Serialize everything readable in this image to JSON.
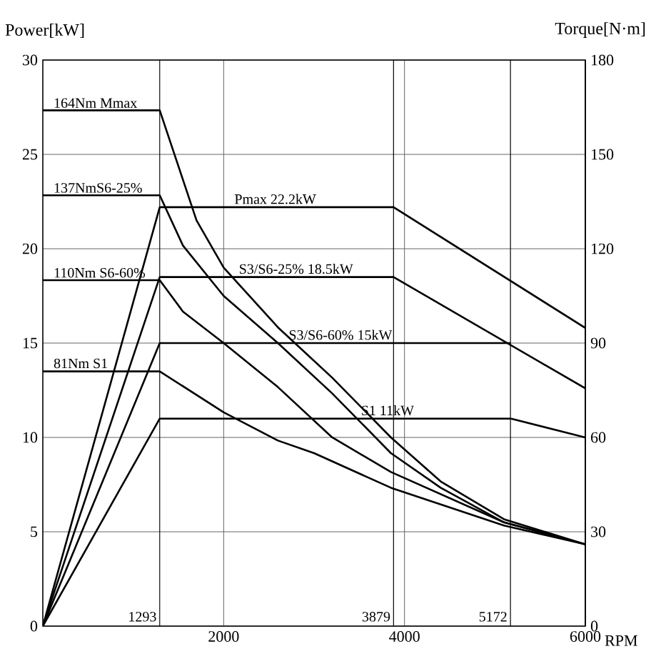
{
  "chart_data": {
    "type": "line",
    "xlabel": "RPM",
    "ylabel": "Power[kW]",
    "y2label": "Torque[N·m]",
    "xlim": [
      0,
      6000
    ],
    "xticks": [
      2000,
      4000,
      6000
    ],
    "ylim": [
      0,
      30
    ],
    "yticks": [
      0,
      5,
      10,
      15,
      20,
      25,
      30
    ],
    "y2lim": [
      0,
      180
    ],
    "y2ticks": [
      0,
      30,
      60,
      90,
      120,
      150,
      180
    ],
    "grid": true,
    "series": [
      {
        "color": "#000000",
        "x": [
          0,
          1293,
          3879,
          6000
        ],
        "values": [
          0,
          22.2,
          22.2,
          15.8
        ]
      },
      {
        "color": "#000000",
        "x": [
          0,
          1293,
          3879,
          6000
        ],
        "values": [
          0,
          18.5,
          18.5,
          12.6
        ]
      },
      {
        "color": "#000000",
        "x": [
          0,
          1293,
          5172
        ],
        "values": [
          0,
          15,
          15
        ]
      },
      {
        "color": "#000000",
        "x": [
          0,
          1293,
          5172,
          6000
        ],
        "values": [
          0,
          11,
          11,
          10
        ]
      },
      {
        "color": "#000000",
        "axis": "y2",
        "x": [
          0,
          1293,
          1700,
          2000,
          2600,
          3200,
          3850,
          4400,
          5100,
          6000
        ],
        "values": [
          164,
          164,
          129,
          114,
          95,
          79,
          60,
          46,
          34,
          26
        ]
      },
      {
        "color": "#000000",
        "axis": "y2",
        "x": [
          0,
          1293,
          1550,
          2000,
          2600,
          3200,
          3850,
          4400,
          5100,
          6000
        ],
        "values": [
          137,
          137,
          121,
          105,
          90,
          74,
          55,
          44,
          33,
          26
        ]
      },
      {
        "color": "#000000",
        "axis": "y2",
        "x": [
          0,
          1293,
          1550,
          2000,
          2600,
          3200,
          3850,
          5100,
          6000
        ],
        "values": [
          110,
          110,
          100,
          90,
          76,
          60,
          49,
          33,
          26
        ]
      },
      {
        "color": "#000000",
        "axis": "y2",
        "x": [
          0,
          1293,
          2000,
          2600,
          3000,
          3850,
          5100,
          6000
        ],
        "values": [
          81,
          81,
          68,
          59,
          55,
          44,
          32,
          26
        ]
      }
    ],
    "ref_lines": [
      {
        "axis": "x",
        "value": 1293,
        "label": "1293"
      },
      {
        "axis": "x",
        "value": 3879,
        "label": "3879"
      },
      {
        "axis": "x",
        "value": 5172,
        "label": "5172"
      }
    ],
    "annotations": [
      {
        "text": "164Nm Mmax",
        "x": 100,
        "y": 27.3
      },
      {
        "text": "137NmS6-25%",
        "x": 100,
        "y": 22.8
      },
      {
        "text": "110Nm S6-60%",
        "x": 100,
        "y": 18.3
      },
      {
        "text": "81Nm S1",
        "x": 100,
        "y": 13.5
      },
      {
        "text": "Pmax 22.2kW",
        "x": 2100,
        "y": 22.2
      },
      {
        "text": "S3/S6-25% 18.5kW",
        "x": 2150,
        "y": 18.5
      },
      {
        "text": "S3/S6-60% 15kW",
        "x": 2700,
        "y": 15
      },
      {
        "text": "S1 11kW",
        "x": 3500,
        "y": 11
      }
    ]
  }
}
